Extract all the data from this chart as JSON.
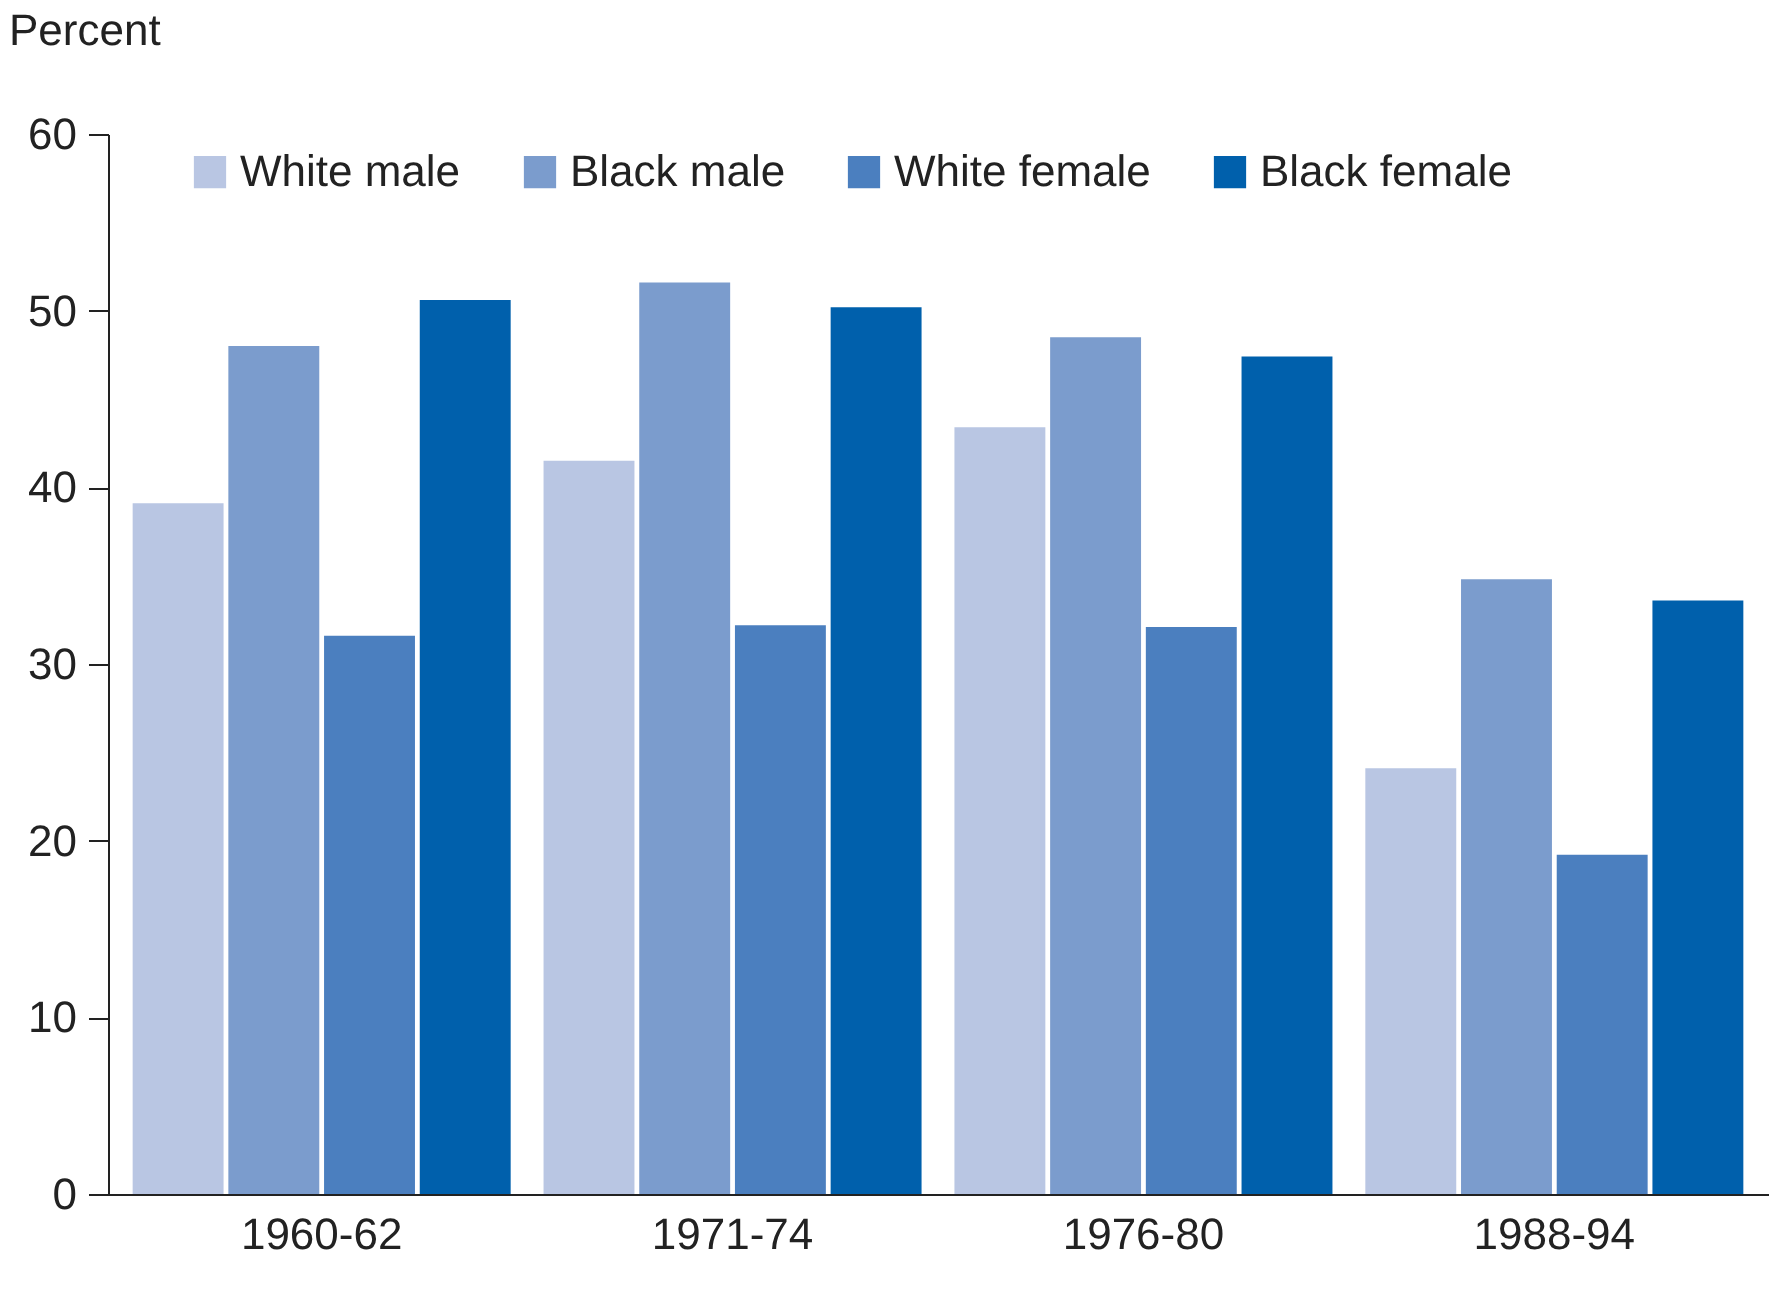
{
  "chart_data": {
    "type": "bar",
    "ylabel": "Percent",
    "categories": [
      "1960-62",
      "1971-74",
      "1976-80",
      "1988-94"
    ],
    "series": [
      {
        "name": "White male",
        "color": "#b9c6e3",
        "values": [
          39.1,
          41.5,
          43.4,
          24.1
        ]
      },
      {
        "name": "Black male",
        "color": "#7b9ccd",
        "values": [
          48.0,
          51.6,
          48.5,
          34.8
        ]
      },
      {
        "name": "White female",
        "color": "#4b7fbf",
        "values": [
          31.6,
          32.2,
          32.1,
          19.2
        ]
      },
      {
        "name": "Black female",
        "color": "#0060ac",
        "values": [
          50.6,
          50.2,
          47.4,
          33.6
        ]
      }
    ],
    "ylim": [
      0,
      60
    ],
    "yticks": [
      0,
      10,
      20,
      30,
      40,
      50,
      60
    ],
    "grid": false,
    "legend": "top"
  }
}
